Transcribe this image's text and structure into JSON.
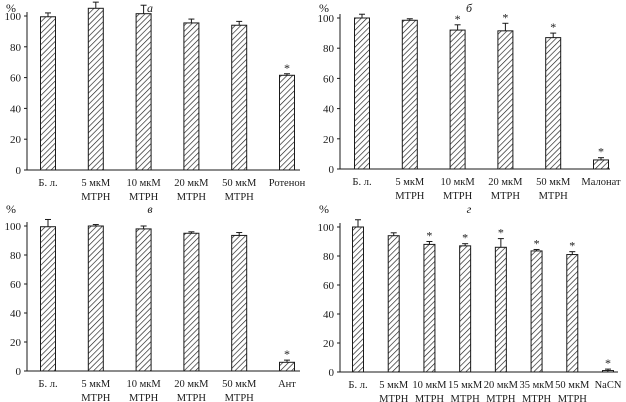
{
  "chart_data": [
    {
      "type": "bar",
      "panel_label": "а",
      "ylabel": "%",
      "ylim": [
        0,
        100
      ],
      "yticks": [
        0,
        20,
        40,
        60,
        80,
        100
      ],
      "categories": [
        [
          "Б. л."
        ],
        [
          "5 мкМ",
          "MTPH"
        ],
        [
          "10 мкМ",
          "MTPH"
        ],
        [
          "20 мкМ",
          "MTPH"
        ],
        [
          "50 мкМ",
          "MTPH"
        ],
        [
          "Ротенон"
        ]
      ],
      "values": [
        99.5,
        105,
        101.5,
        95.5,
        94,
        61.5
      ],
      "errors": [
        2.5,
        4,
        5.5,
        2.5,
        2.5,
        1
      ],
      "significant": [
        false,
        false,
        false,
        false,
        false,
        true
      ]
    },
    {
      "type": "bar",
      "panel_label": "б",
      "ylabel": "%",
      "ylim": [
        0,
        100
      ],
      "yticks": [
        0,
        20,
        40,
        60,
        80,
        100
      ],
      "categories": [
        [
          "Б. л."
        ],
        [
          "5 мкМ",
          "MTPH"
        ],
        [
          "10 мкМ",
          "MTPH"
        ],
        [
          "20 мкМ",
          "MTPH"
        ],
        [
          "50 мкМ",
          "MTPH"
        ],
        [
          "Малонат"
        ]
      ],
      "values": [
        100,
        98.5,
        92,
        91.5,
        87,
        6
      ],
      "errors": [
        2.5,
        1,
        3.5,
        5,
        3,
        1.5
      ],
      "significant": [
        false,
        false,
        true,
        true,
        true,
        true
      ]
    },
    {
      "type": "bar",
      "panel_label": "в",
      "ylabel": "%",
      "ylim": [
        0,
        100
      ],
      "yticks": [
        0,
        20,
        40,
        60,
        80,
        100
      ],
      "categories": [
        [
          "Б. л."
        ],
        [
          "5 мкМ",
          "MTPH"
        ],
        [
          "10 мкМ",
          "MTPH"
        ],
        [
          "20 мкМ",
          "MTPH"
        ],
        [
          "50 мкМ",
          "MTPH"
        ],
        [
          "Ант"
        ]
      ],
      "values": [
        99.5,
        100,
        98,
        95,
        93.5,
        6
      ],
      "errors": [
        5,
        1,
        2,
        1,
        2,
        1.5
      ],
      "significant": [
        false,
        false,
        false,
        false,
        false,
        true
      ]
    },
    {
      "type": "bar",
      "panel_label": "г",
      "ylabel": "%",
      "ylim": [
        0,
        100
      ],
      "yticks": [
        0,
        20,
        40,
        60,
        80,
        100
      ],
      "categories": [
        [
          "Б. л."
        ],
        [
          "5 мкМ",
          "MTPH"
        ],
        [
          "10 мкМ",
          "MTPH"
        ],
        [
          "15 мкМ",
          "MTPH"
        ],
        [
          "20 мкМ",
          "MTPH"
        ],
        [
          "35 мкМ",
          "MTPH"
        ],
        [
          "50 мкМ",
          "MTPH"
        ],
        [
          "NaCN"
        ]
      ],
      "values": [
        100,
        94,
        88,
        87,
        86,
        83.5,
        81,
        1
      ],
      "errors": [
        5,
        2,
        2,
        1.5,
        6,
        1,
        2,
        1
      ],
      "significant": [
        false,
        false,
        true,
        true,
        true,
        true,
        true,
        true
      ]
    }
  ]
}
